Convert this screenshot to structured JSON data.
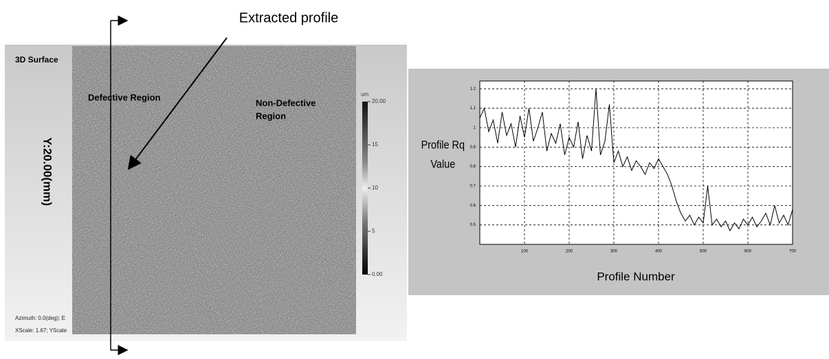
{
  "surface_panel": {
    "annotation": "Extracted profile",
    "title": "3D Surface",
    "defective_label": "Defective Region",
    "non_defective_label": [
      "Non-Defective",
      "Region"
    ],
    "y_axis_label": "Y:20.00(mm)",
    "colorbar": {
      "unit": "um",
      "labels": [
        "20.00",
        "15",
        "10",
        "5",
        "0.00"
      ]
    },
    "footer": [
      "Azimuth:  0.0(deg); E",
      "XScale: 1.67; YScale"
    ]
  },
  "chart_data": {
    "type": "line",
    "ylabel": [
      "Profile Rq",
      "Value"
    ],
    "xlabel": "Profile Number",
    "x": [
      0,
      10,
      20,
      30,
      40,
      50,
      60,
      70,
      80,
      90,
      100,
      110,
      120,
      130,
      140,
      150,
      160,
      170,
      180,
      190,
      200,
      210,
      220,
      230,
      240,
      250,
      260,
      270,
      280,
      290,
      300,
      310,
      320,
      330,
      340,
      350,
      360,
      370,
      380,
      390,
      400,
      410,
      420,
      430,
      440,
      450,
      460,
      470,
      480,
      490,
      500,
      510,
      520,
      530,
      540,
      550,
      560,
      570,
      580,
      590,
      600,
      610,
      620,
      630,
      640,
      650,
      660,
      670,
      680,
      690,
      700
    ],
    "series": [
      {
        "color": "#000000",
        "values": [
          1.05,
          1.1,
          0.98,
          1.04,
          0.92,
          1.08,
          0.96,
          1.02,
          0.9,
          1.06,
          0.95,
          1.1,
          0.93,
          1.0,
          1.08,
          0.88,
          0.97,
          0.92,
          1.02,
          0.86,
          0.95,
          0.9,
          1.03,
          0.84,
          0.96,
          0.88,
          1.2,
          0.86,
          0.93,
          1.12,
          0.82,
          0.88,
          0.8,
          0.85,
          0.78,
          0.83,
          0.8,
          0.76,
          0.82,
          0.79,
          0.84,
          0.8,
          0.76,
          0.7,
          0.62,
          0.56,
          0.52,
          0.55,
          0.5,
          0.54,
          0.51,
          0.7,
          0.5,
          0.53,
          0.49,
          0.52,
          0.47,
          0.51,
          0.48,
          0.53,
          0.5,
          0.54,
          0.49,
          0.52,
          0.56,
          0.5,
          0.6,
          0.51,
          0.55,
          0.5,
          0.58
        ]
      }
    ],
    "xlim": [
      0,
      700
    ],
    "xticks": [
      100,
      200,
      300,
      400,
      500,
      600,
      700
    ],
    "ylim": [
      0.4,
      1.24
    ],
    "yticks": [
      0.5,
      0.6,
      0.7,
      0.8,
      0.9,
      1,
      1.1,
      1.2
    ],
    "grid": true
  }
}
